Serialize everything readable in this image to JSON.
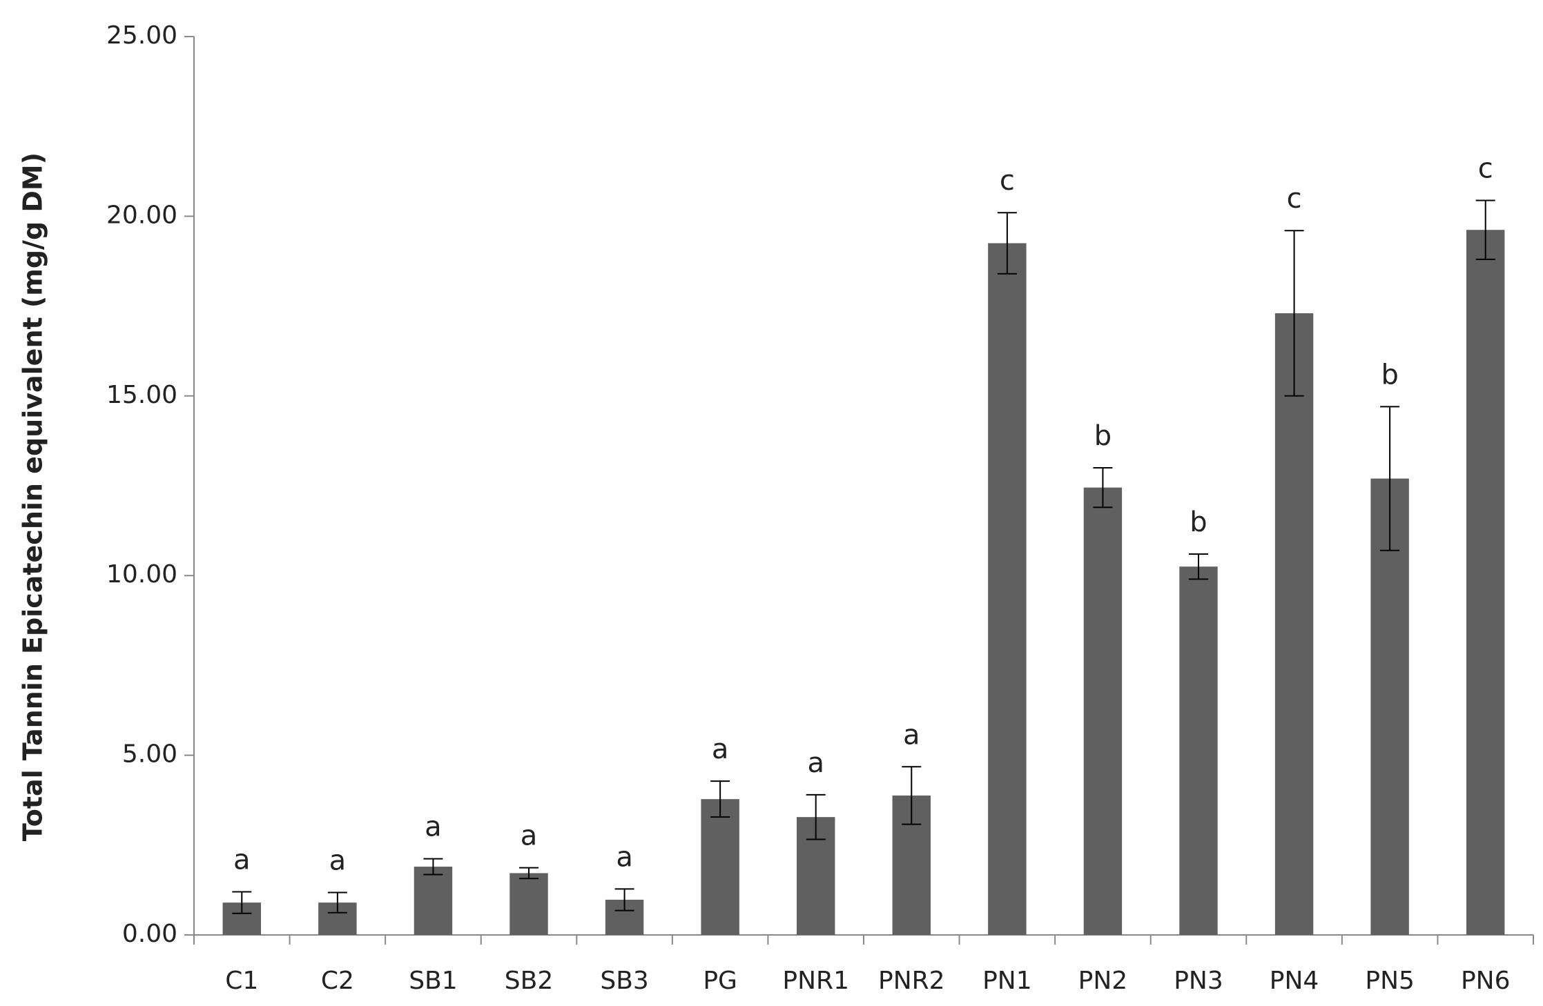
{
  "chart_data": {
    "type": "bar",
    "y_label": "Total Tannin Epicatechin equivalent (mg/g DM)",
    "categories": [
      "C1",
      "C2",
      "SB1",
      "SB2",
      "SB3",
      "PG",
      "PNR1",
      "PNR2",
      "PN1",
      "PN2",
      "PN3",
      "PN4",
      "PN5",
      "PN6"
    ],
    "values": [
      0.9,
      0.9,
      1.9,
      1.72,
      0.98,
      3.78,
      3.28,
      3.88,
      19.25,
      12.45,
      10.25,
      17.3,
      12.7,
      19.62
    ],
    "errors": [
      0.3,
      0.28,
      0.22,
      0.15,
      0.3,
      0.5,
      0.62,
      0.8,
      0.85,
      0.55,
      0.35,
      2.3,
      2.0,
      0.82
    ],
    "annotations": [
      "a",
      "a",
      "a",
      "a",
      "a",
      "a",
      "a",
      "a",
      "c",
      "b",
      "b",
      "c",
      "b",
      "c"
    ],
    "color": "#606060",
    "ylim": [
      0,
      25
    ],
    "yticks": [
      {
        "value": 0,
        "label": "0.00"
      },
      {
        "value": 5,
        "label": "5.00"
      },
      {
        "value": 10,
        "label": "10.00"
      },
      {
        "value": 15,
        "label": "15.00"
      },
      {
        "value": 20,
        "label": "20.00"
      },
      {
        "value": 25,
        "label": "25.00"
      }
    ],
    "grid": false
  }
}
